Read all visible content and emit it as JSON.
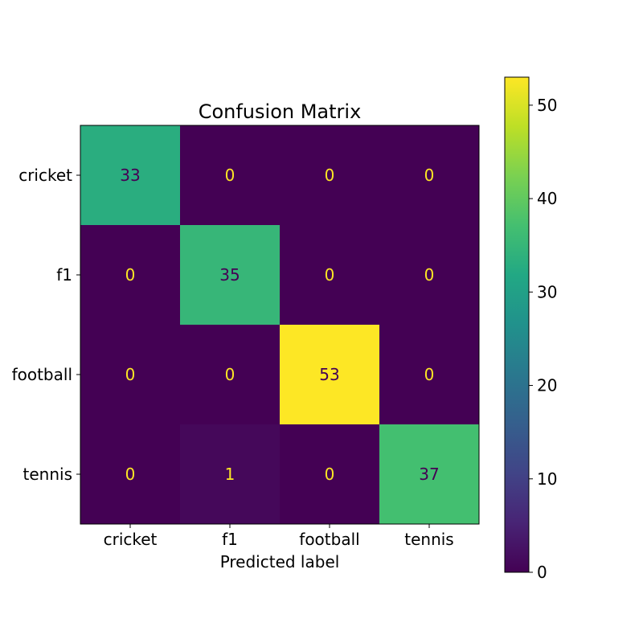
{
  "chart_data": {
    "type": "heatmap",
    "title": "Confusion Matrix",
    "xlabel": "Predicted label",
    "ylabel": "",
    "x_categories": [
      "cricket",
      "f1",
      "football",
      "tennis"
    ],
    "y_categories": [
      "cricket",
      "f1",
      "football",
      "tennis"
    ],
    "values": [
      [
        33,
        0,
        0,
        0
      ],
      [
        0,
        35,
        0,
        0
      ],
      [
        0,
        0,
        53,
        0
      ],
      [
        0,
        1,
        0,
        37
      ]
    ],
    "colormap": "viridis",
    "colorbar": {
      "range": [
        0,
        53
      ],
      "ticks": [
        "0",
        "10",
        "20",
        "30",
        "40",
        "50"
      ]
    },
    "label_colors": {
      "light": "#fde725",
      "dark": "#440154"
    }
  }
}
